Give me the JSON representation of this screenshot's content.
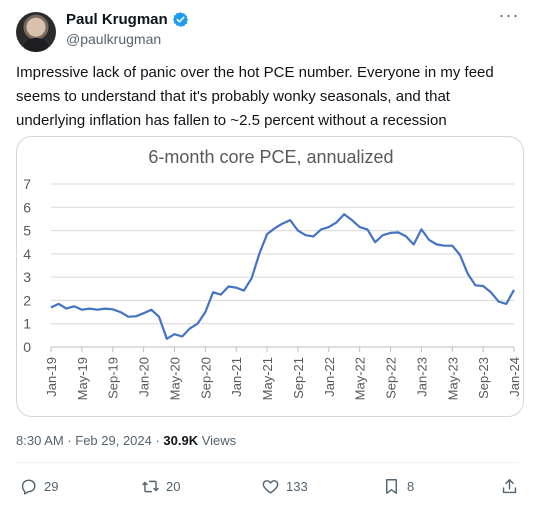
{
  "author": {
    "name": "Paul Krugman",
    "handle": "@paulkrugman"
  },
  "tweet": {
    "text": "Impressive lack of panic over the hot PCE number. Everyone in my feed seems to understand that it's probably wonky seasonals, and that underlying inflation has fallen to ~2.5 percent without a recession",
    "time": "8:30 AM · Feb 29, 2024 · ",
    "views_count": "30.9K",
    "views_label": " Views"
  },
  "actions": {
    "replies": "29",
    "reposts": "20",
    "likes": "133",
    "bookmarks": "8"
  },
  "colors": {
    "line": "#4472c4",
    "verified": "#1d9bf0"
  },
  "chart_data": {
    "type": "line",
    "title": "6-month core PCE, annualized",
    "xlabel": "",
    "ylabel": "",
    "ylim": [
      0,
      7
    ],
    "yticks": [
      0,
      1,
      2,
      3,
      4,
      5,
      6,
      7
    ],
    "xtick_labels": [
      "Jan-19",
      "May-19",
      "Sep-19",
      "Jan-20",
      "May-20",
      "Sep-20",
      "Jan-21",
      "May-21",
      "Sep-21",
      "Jan-22",
      "May-22",
      "Sep-22",
      "Jan-23",
      "May-23",
      "Sep-23",
      "Jan-24"
    ],
    "grid": true,
    "legend": "none",
    "series": [
      {
        "values": [
          1.7,
          1.85,
          1.65,
          1.75,
          1.6,
          1.65,
          1.6,
          1.65,
          1.62,
          1.5,
          1.3,
          1.32,
          1.45,
          1.6,
          1.3,
          0.35,
          0.55,
          0.45,
          0.8,
          1.0,
          1.5,
          2.35,
          2.25,
          2.6,
          2.55,
          2.42,
          2.95,
          4.0,
          4.85,
          5.1,
          5.3,
          5.45,
          5.0,
          4.8,
          4.75,
          5.05,
          5.15,
          5.35,
          5.7,
          5.45,
          5.15,
          5.05,
          4.5,
          4.8,
          4.9,
          4.92,
          4.75,
          4.4,
          5.05,
          4.6,
          4.4,
          4.35,
          4.35,
          3.95,
          3.15,
          2.65,
          2.62,
          2.35,
          1.95,
          1.85,
          2.45
        ]
      }
    ]
  }
}
